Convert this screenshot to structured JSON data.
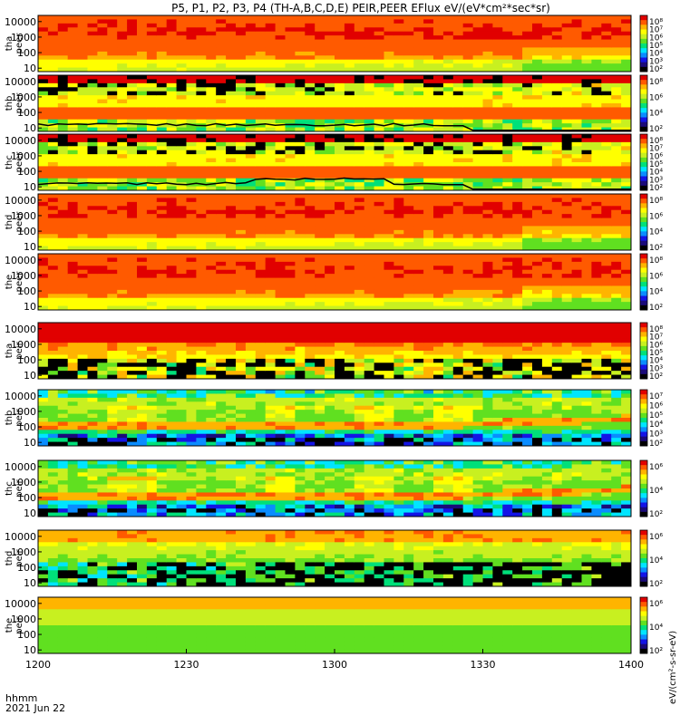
{
  "chart_data": {
    "type": "heatmap",
    "title": "P5, P1, P2, P3, P4 (TH-A,B,C,D,E) PEIR,PEER EFlux eV/(eV*cm²*sec*sr)",
    "xlabel_top": "hhmm",
    "xlabel_bottom": "2021 Jun 22",
    "x_ticks": [
      "1200",
      "1230",
      "1300",
      "1330",
      "1400"
    ],
    "x_range_minutes": [
      0,
      120
    ],
    "y_ticks": [
      "10000",
      "1000",
      "100",
      "10"
    ],
    "y_range_eV": [
      6,
      25000
    ],
    "colorbar_label": "eV/(cm²-s-sr-eV)",
    "panels": [
      {
        "id": "tha-peer",
        "probe": "tha",
        "species": "peer",
        "profile": "electron-dense",
        "colorbar_ticks": [
          "10⁸",
          "10⁷",
          "10⁶",
          "10⁵",
          "10⁴",
          "10³",
          "10²"
        ]
      },
      {
        "id": "thb-peer",
        "probe": "thb",
        "species": "peer",
        "profile": "electron-tail-b",
        "colorbar_ticks": [
          "10⁸",
          "10⁶",
          "10⁴",
          "10²"
        ],
        "overlay": "spacecraft-potential"
      },
      {
        "id": "thc-peer",
        "probe": "thc",
        "species": "peer",
        "profile": "electron-tail-c",
        "colorbar_ticks": [
          "10⁸",
          "10⁷",
          "10⁶",
          "10⁵",
          "10⁴",
          "10³",
          "10²"
        ],
        "overlay": "spacecraft-potential"
      },
      {
        "id": "thd-peer",
        "probe": "thd",
        "species": "peer",
        "profile": "electron-dense",
        "colorbar_ticks": [
          "10⁸",
          "10⁶",
          "10⁴",
          "10²"
        ]
      },
      {
        "id": "the-peer",
        "probe": "the",
        "species": "peer",
        "profile": "electron-dense",
        "colorbar_ticks": [
          "10⁸",
          "10⁶",
          "10⁴",
          "10²"
        ]
      },
      {
        "id": "tha-peir",
        "probe": "tha",
        "species": "peir",
        "profile": "ion-a",
        "colorbar_ticks": [
          "10⁸",
          "10⁷",
          "10⁶",
          "10⁵",
          "10⁴",
          "10³",
          "10²"
        ]
      },
      {
        "id": "thb-peir",
        "probe": "thb",
        "species": "peir",
        "profile": "ion-b",
        "colorbar_ticks": [
          "10⁷",
          "10⁶",
          "10⁵",
          "10⁴",
          "10³",
          "10²"
        ]
      },
      {
        "id": "thc-peir",
        "probe": "thc",
        "species": "peir",
        "profile": "ion-c",
        "colorbar_ticks": [
          "10⁶",
          "10⁴",
          "10²"
        ]
      },
      {
        "id": "thd-peir",
        "probe": "thd",
        "species": "peir",
        "profile": "ion-d",
        "colorbar_ticks": [
          "10⁶",
          "10⁴",
          "10²"
        ]
      },
      {
        "id": "the-peir",
        "probe": "the",
        "species": "peir",
        "profile": "ion-e",
        "colorbar_ticks": [
          "10⁶",
          "10⁴",
          "10²"
        ]
      }
    ],
    "colors": {
      "palette": [
        "#000000",
        "#1a0a7a",
        "#1414e6",
        "#0a8cff",
        "#00e5ff",
        "#00e07a",
        "#60e020",
        "#c8f020",
        "#ffff00",
        "#ffb400",
        "#ff5a00",
        "#e10000"
      ]
    }
  }
}
